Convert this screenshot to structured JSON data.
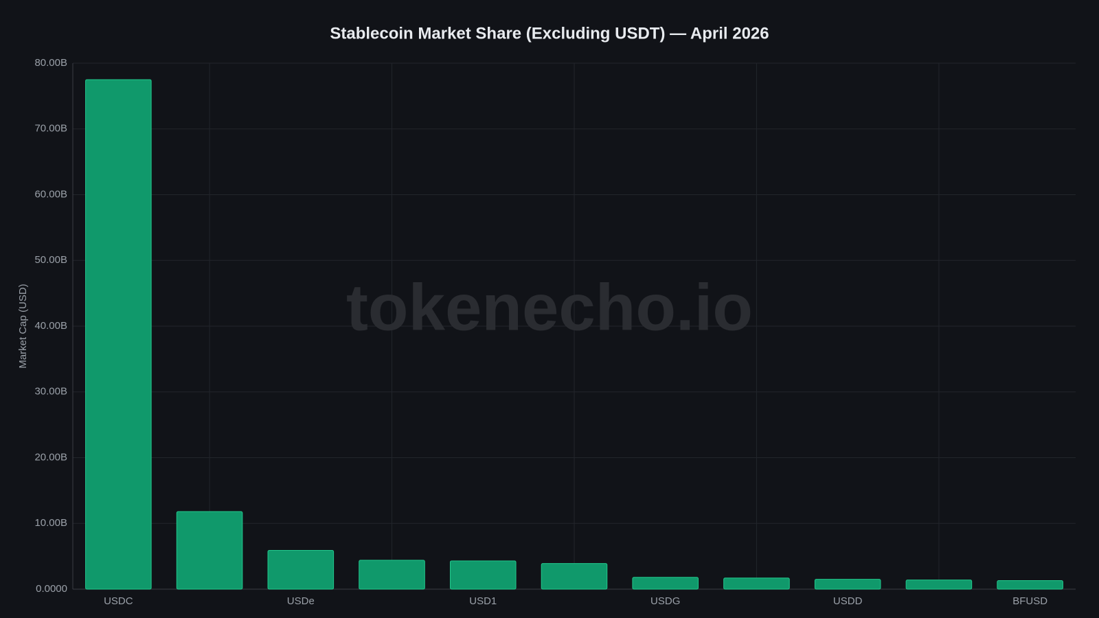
{
  "chart_data": {
    "type": "bar",
    "title": "Stablecoin Market Share (Excluding USDT) — April 2026",
    "y_label": "Market Cap (USD)",
    "watermark": "tokenecho.io",
    "categories": [
      "USDC",
      null,
      "USDe",
      null,
      "USD1",
      null,
      "USDG",
      null,
      "USDD",
      null,
      "BFUSD"
    ],
    "values": [
      77500000000,
      11800000000,
      5900000000,
      4400000000,
      4300000000,
      3900000000,
      1800000000,
      1700000000,
      1500000000,
      1400000000,
      1300000000
    ],
    "color": "#10996b",
    "ylim": [
      0,
      80000000000
    ],
    "yticks": [
      {
        "value": 0,
        "label": "0.0000"
      },
      {
        "value": 10000000000,
        "label": "10.00B"
      },
      {
        "value": 20000000000,
        "label": "20.00B"
      },
      {
        "value": 30000000000,
        "label": "30.00B"
      },
      {
        "value": 40000000000,
        "label": "40.00B"
      },
      {
        "value": 50000000000,
        "label": "50.00B"
      },
      {
        "value": 60000000000,
        "label": "60.00B"
      },
      {
        "value": 70000000000,
        "label": "70.00B"
      },
      {
        "value": 80000000000,
        "label": "80.00B"
      }
    ],
    "grid": true
  }
}
